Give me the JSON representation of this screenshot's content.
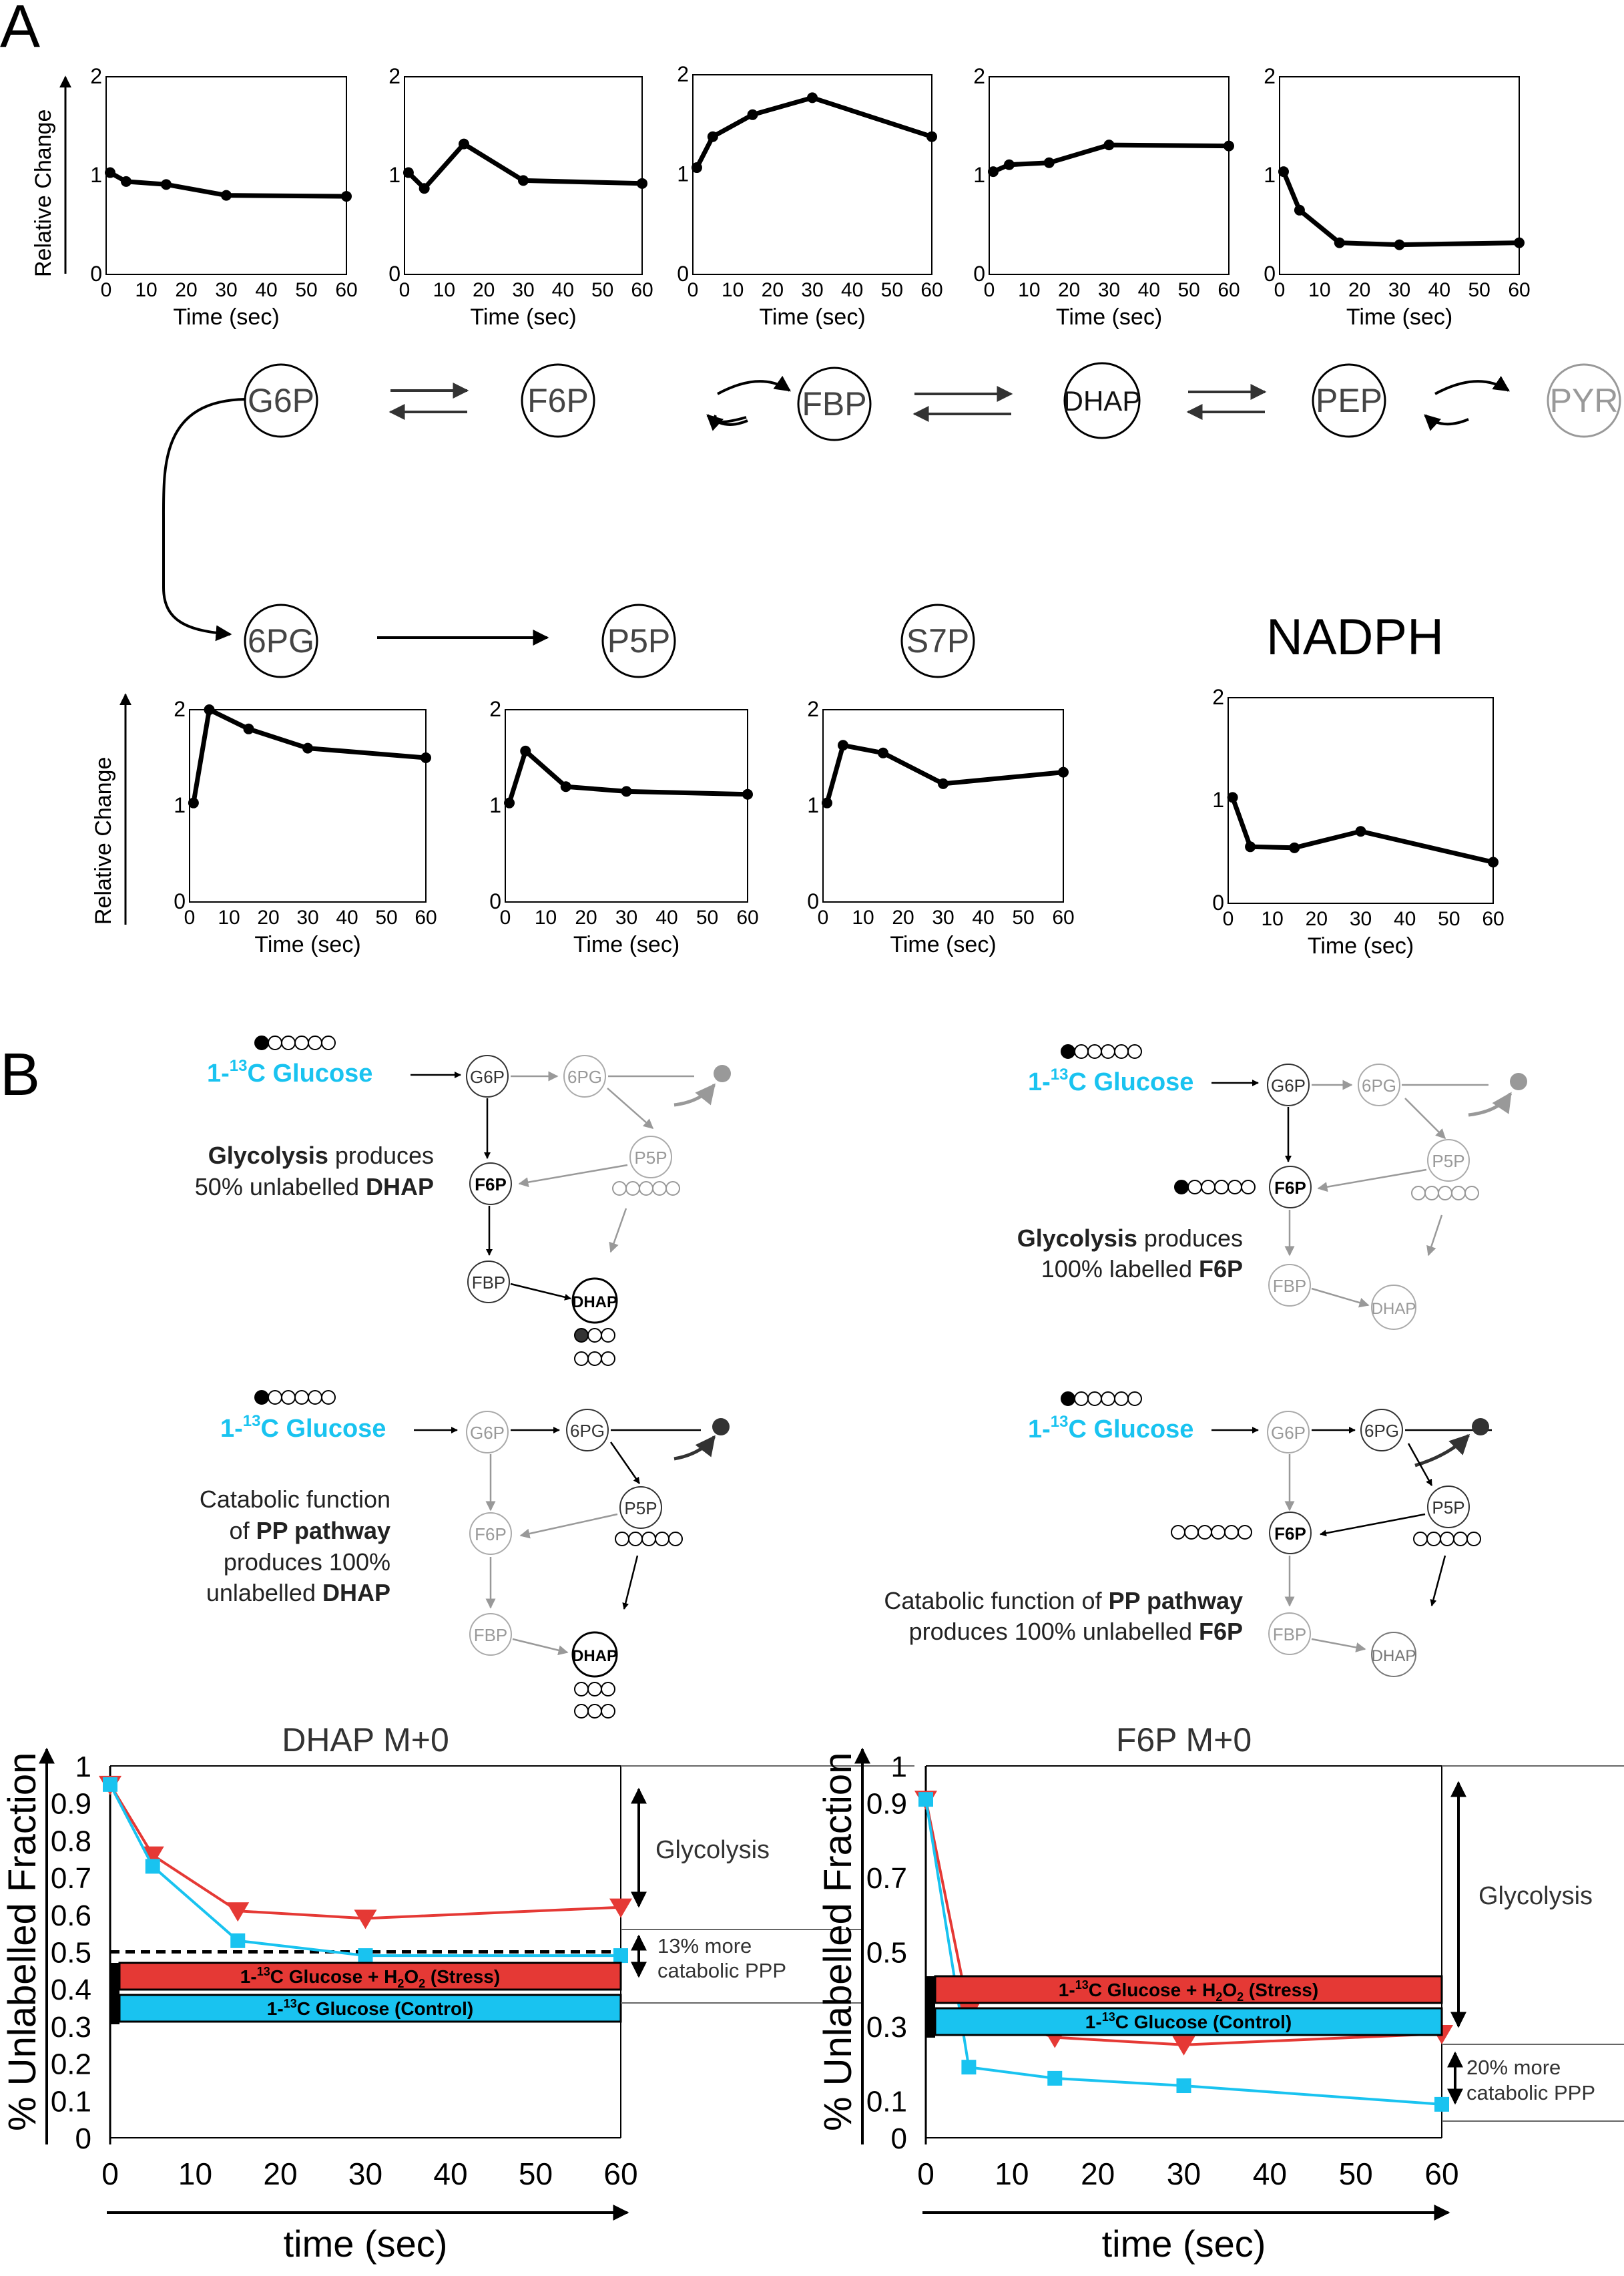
{
  "panels": {
    "a": "A",
    "b": "B"
  },
  "axis": {
    "relative_change": "Relative Change",
    "time_sec": "Time (sec)"
  },
  "pathway": {
    "top": [
      "G6P",
      "F6P",
      "FBP",
      "DHAP",
      "PEP",
      "PYR"
    ],
    "bottom": [
      "6PG",
      "P5P",
      "S7P"
    ],
    "nadph": "NADPH"
  },
  "schemes": {
    "glucose": "1-13C Glucose",
    "glucose_base": "1-",
    "glucose_sup": "13",
    "glucose_rest": "C Glucose",
    "nodes": {
      "g6p": "G6P",
      "pg6": "6PG",
      "p5p": "P5P",
      "f6p": "F6P",
      "fbp": "FBP",
      "dhap": "DHAP"
    },
    "text_1": {
      "l1": [
        "Glycolysis",
        " produces"
      ],
      "l2": [
        "50%  unlabelled ",
        "DHAP"
      ]
    },
    "text_2": {
      "l1": [
        "Glycolysis",
        "  produces"
      ],
      "l2": [
        "100%  labelled  ",
        "F6P"
      ]
    },
    "text_3": {
      "l1": "Catabolic  function",
      "l2": [
        "of  ",
        "PP  pathway"
      ],
      "l3": "produces  100%",
      "l4": [
        "unlabelled   ",
        "DHAP"
      ]
    },
    "text_4": {
      "l1": [
        "Catabolic function of ",
        "PP pathway"
      ],
      "l2": [
        "produces  100%  unlabelled   ",
        "F6P"
      ]
    }
  },
  "colors": {
    "stress": "#e53935",
    "control": "#19c3f0",
    "faded": "#999999",
    "glucose": "#19c3f0"
  },
  "chart_data": [
    {
      "type": "line",
      "title": "",
      "xlabel": "Time (sec)",
      "ylabel": "Relative Change",
      "xlim": [
        0,
        60
      ],
      "ylim": [
        0,
        2
      ],
      "xticks": [
        0,
        10,
        20,
        30,
        40,
        50,
        60
      ],
      "yticks": [
        0,
        1,
        2
      ],
      "series": [
        {
          "x": [
            1,
            5,
            15,
            30,
            60
          ],
          "y": [
            1.03,
            0.94,
            0.91,
            0.8,
            0.79
          ]
        }
      ]
    },
    {
      "type": "line",
      "title": "",
      "xlabel": "Time (sec)",
      "ylabel": "",
      "xlim": [
        0,
        60
      ],
      "ylim": [
        0,
        2
      ],
      "xticks": [
        0,
        10,
        20,
        30,
        40,
        50,
        60
      ],
      "yticks": [
        0,
        1,
        2
      ],
      "series": [
        {
          "x": [
            1,
            5,
            15,
            30,
            60
          ],
          "y": [
            1.03,
            0.87,
            1.32,
            0.95,
            0.92
          ]
        }
      ]
    },
    {
      "type": "line",
      "title": "",
      "xlabel": "Time (sec)",
      "ylabel": "",
      "xlim": [
        0,
        60
      ],
      "ylim": [
        0,
        2
      ],
      "xticks": [
        0,
        10,
        20,
        30,
        40,
        50,
        60
      ],
      "yticks": [
        0,
        1,
        2
      ],
      "series": [
        {
          "x": [
            1,
            5,
            15,
            30,
            60
          ],
          "y": [
            1.07,
            1.38,
            1.6,
            1.77,
            1.38
          ]
        }
      ]
    },
    {
      "type": "line",
      "title": "",
      "xlabel": "Time (sec)",
      "ylabel": "",
      "xlim": [
        0,
        60
      ],
      "ylim": [
        0,
        2
      ],
      "xticks": [
        0,
        10,
        20,
        30,
        40,
        50,
        60
      ],
      "yticks": [
        0,
        1,
        2
      ],
      "series": [
        {
          "x": [
            1,
            5,
            15,
            30,
            60
          ],
          "y": [
            1.04,
            1.11,
            1.13,
            1.31,
            1.3
          ]
        }
      ]
    },
    {
      "type": "line",
      "title": "",
      "xlabel": "Time (sec)",
      "ylabel": "",
      "xlim": [
        0,
        60
      ],
      "ylim": [
        0,
        2
      ],
      "xticks": [
        0,
        10,
        20,
        30,
        40,
        50,
        60
      ],
      "yticks": [
        0,
        1,
        2
      ],
      "series": [
        {
          "x": [
            1,
            5,
            15,
            30,
            60
          ],
          "y": [
            1.04,
            0.65,
            0.32,
            0.3,
            0.32
          ]
        }
      ]
    },
    {
      "type": "line",
      "title": "",
      "xlabel": "Time (sec)",
      "ylabel": "Relative Change",
      "xlim": [
        0,
        60
      ],
      "ylim": [
        0,
        2
      ],
      "xticks": [
        0,
        10,
        20,
        30,
        40,
        50,
        60
      ],
      "yticks": [
        0,
        1,
        2
      ],
      "series": [
        {
          "x": [
            1,
            5,
            15,
            30,
            60
          ],
          "y": [
            1.03,
            2.0,
            1.8,
            1.6,
            1.5
          ]
        }
      ]
    },
    {
      "type": "line",
      "title": "",
      "xlabel": "Time (sec)",
      "ylabel": "",
      "xlim": [
        0,
        60
      ],
      "ylim": [
        0,
        2
      ],
      "xticks": [
        0,
        10,
        20,
        30,
        40,
        50,
        60
      ],
      "yticks": [
        0,
        1,
        2
      ],
      "series": [
        {
          "x": [
            1,
            5,
            15,
            30,
            60
          ],
          "y": [
            1.03,
            1.57,
            1.2,
            1.15,
            1.12
          ]
        }
      ]
    },
    {
      "type": "line",
      "title": "",
      "xlabel": "Time (sec)",
      "ylabel": "",
      "xlim": [
        0,
        60
      ],
      "ylim": [
        0,
        2
      ],
      "xticks": [
        0,
        10,
        20,
        30,
        40,
        50,
        60
      ],
      "yticks": [
        0,
        1,
        2
      ],
      "series": [
        {
          "x": [
            1,
            5,
            15,
            30,
            60
          ],
          "y": [
            1.03,
            1.63,
            1.55,
            1.23,
            1.35
          ]
        }
      ]
    },
    {
      "type": "line",
      "title": "",
      "xlabel": "Time (sec)",
      "ylabel": "",
      "xlim": [
        0,
        60
      ],
      "ylim": [
        0,
        2
      ],
      "xticks": [
        0,
        10,
        20,
        30,
        40,
        50,
        60
      ],
      "yticks": [
        0,
        1,
        2
      ],
      "series": [
        {
          "x": [
            1,
            5,
            15,
            30,
            60
          ],
          "y": [
            1.03,
            0.55,
            0.54,
            0.7,
            0.4
          ]
        }
      ]
    },
    {
      "type": "line",
      "title": "DHAP M+0",
      "xlabel": "time (sec)",
      "ylabel": "% Unlabelled Fraction",
      "xlim": [
        0,
        60
      ],
      "ylim": [
        0,
        1
      ],
      "xticks": [
        0,
        10,
        20,
        30,
        40,
        50,
        60
      ],
      "yticks": [
        0,
        0.1,
        0.2,
        0.3,
        0.4,
        0.5,
        0.6,
        0.7,
        0.8,
        0.9,
        1
      ],
      "series": [
        {
          "name": "1-13C Glucose + H2O2 (Stress)",
          "x": [
            0,
            5,
            15,
            30,
            60
          ],
          "y": [
            0.95,
            0.76,
            0.61,
            0.59,
            0.62
          ]
        },
        {
          "name": "1-13C Glucose (Control)",
          "x": [
            0,
            5,
            15,
            30,
            60
          ],
          "y": [
            0.95,
            0.73,
            0.53,
            0.49,
            0.49
          ]
        }
      ],
      "reference_line": 0.5,
      "annotations": [
        "Glycolysis",
        "13% more",
        "catabolic PPP"
      ],
      "legend": [
        "1-13C Glucose + H2O2 (Stress)",
        "1-13C Glucose (Control)"
      ]
    },
    {
      "type": "line",
      "title": "F6P M+0",
      "xlabel": "time (sec)",
      "ylabel": "% Unlabelled Fraction",
      "xlim": [
        0,
        60
      ],
      "ylim": [
        0,
        1
      ],
      "xticks": [
        0,
        10,
        20,
        30,
        40,
        50,
        60
      ],
      "yticks": [
        0,
        0.1,
        0.3,
        0.5,
        0.7,
        0.9,
        1
      ],
      "series": [
        {
          "name": "1-13C Glucose + H2O2 (Stress)",
          "x": [
            0,
            5,
            15,
            30,
            60
          ],
          "y": [
            0.91,
            0.34,
            0.27,
            0.25,
            0.28
          ]
        },
        {
          "name": "1-13C Glucose (Control)",
          "x": [
            0,
            5,
            15,
            30,
            60
          ],
          "y": [
            0.91,
            0.19,
            0.16,
            0.14,
            0.09
          ]
        }
      ],
      "annotations": [
        "Glycolysis",
        "20% more",
        "catabolic PPP"
      ],
      "legend": [
        "1-13C Glucose + H2O2 (Stress)",
        "1-13C Glucose (Control)"
      ]
    }
  ],
  "legend_bars": {
    "stress": {
      "base": "1-",
      "sup": "13",
      "mid": "C Glucose + H",
      "sub1": "2",
      "mid2": "O",
      "sub2": "2",
      "tail": " (Stress)"
    },
    "control": {
      "base": "1-",
      "sup": "13",
      "rest": "C Glucose (Control)"
    }
  }
}
